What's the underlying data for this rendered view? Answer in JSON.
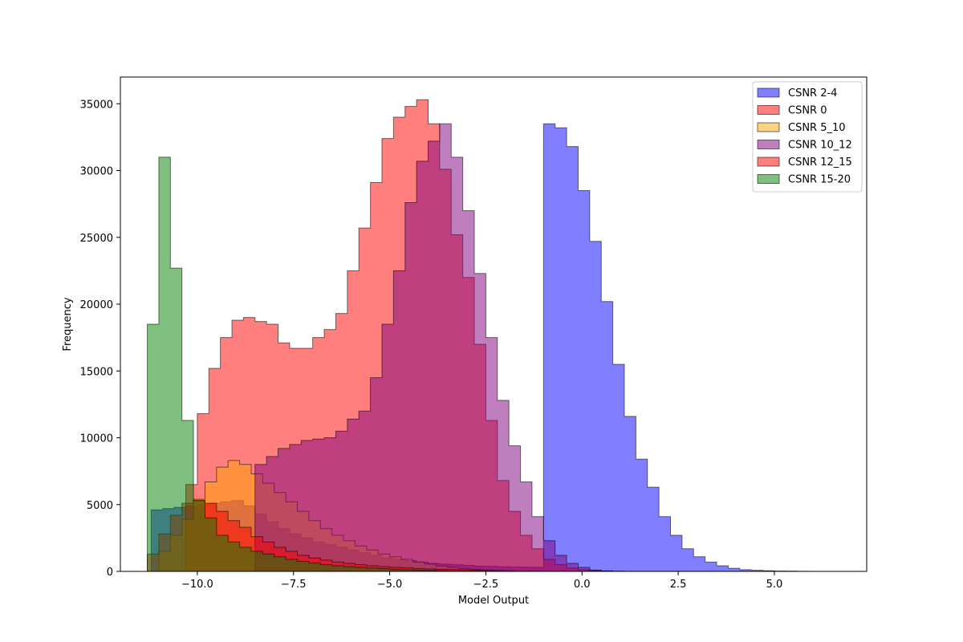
{
  "chart_data": {
    "type": "histogram",
    "title": "",
    "xlabel": "Model Output",
    "ylabel": "Frequency",
    "xlim": [
      -12.0,
      7.4
    ],
    "ylim": [
      0,
      37000
    ],
    "xticks": [
      -10.0,
      -7.5,
      -5.0,
      -2.5,
      0.0,
      2.5,
      5.0
    ],
    "xtick_labels": [
      "−10.0",
      "−7.5",
      "−5.0",
      "−2.5",
      "0.0",
      "2.5",
      "5.0"
    ],
    "yticks": [
      0,
      5000,
      10000,
      15000,
      20000,
      25000,
      30000,
      35000
    ],
    "ytick_labels": [
      "0",
      "5000",
      "10000",
      "15000",
      "20000",
      "25000",
      "30000",
      "35000"
    ],
    "grid": false,
    "legend_position": "top-right",
    "series": [
      {
        "name": "CSNR 2-4",
        "color": "#0000ff",
        "alpha": 0.5,
        "start": -11.2,
        "width": 0.3,
        "counts": [
          4600,
          4700,
          4800,
          4900,
          5000,
          5100,
          5200,
          5300,
          4900,
          4300,
          3700,
          3200,
          2800,
          2500,
          2200,
          2000,
          1800,
          1600,
          1400,
          1200,
          1000,
          900,
          800,
          700,
          600,
          550,
          500,
          450,
          400,
          380,
          350,
          330,
          320,
          310,
          33500,
          33200,
          31800,
          28500,
          24700,
          20200,
          15500,
          11600,
          8400,
          6300,
          4100,
          2700,
          1700,
          1100,
          700,
          420,
          230,
          130,
          80,
          50,
          30,
          20,
          10,
          0,
          0,
          0,
          0
        ]
      },
      {
        "name": "CSNR 0",
        "color": "#ff0000",
        "alpha": 0.5,
        "start": -10.3,
        "width": 0.3,
        "counts": [
          6500,
          11800,
          15200,
          17500,
          18800,
          19000,
          18700,
          18500,
          17100,
          16700,
          16700,
          17500,
          18100,
          19300,
          22500,
          25700,
          29100,
          32400,
          34000,
          34800,
          35300,
          33500,
          30100,
          25200,
          22000,
          17000,
          11300,
          6800,
          4500,
          2700,
          1700,
          900,
          500,
          250,
          120,
          60,
          30,
          10,
          0,
          0,
          0,
          0
        ]
      },
      {
        "name": "CSNR 5_10",
        "color": "#ffa500",
        "alpha": 0.5,
        "start": -11.0,
        "width": 0.3,
        "counts": [
          1500,
          2700,
          3900,
          5400,
          6700,
          7800,
          8300,
          8000,
          7300,
          6600,
          5900,
          5200,
          4500,
          3800,
          3200,
          2700,
          2300,
          1900,
          1600,
          1300,
          1100,
          900,
          700,
          550,
          400,
          300,
          200,
          150,
          100,
          60,
          40,
          20,
          10,
          0,
          0,
          0
        ]
      },
      {
        "name": "CSNR 10_12",
        "color": "#800080",
        "alpha": 0.5,
        "start": -8.5,
        "width": 0.3,
        "counts": [
          8000,
          8600,
          9200,
          9500,
          9800,
          9900,
          10000,
          10500,
          11400,
          12000,
          14500,
          18500,
          22500,
          27600,
          30700,
          32200,
          33500,
          31000,
          27000,
          22300,
          17500,
          12800,
          9400,
          6700,
          4100,
          2300,
          1200,
          600,
          300,
          100,
          40,
          10,
          0,
          0,
          0
        ]
      },
      {
        "name": "CSNR 12_15",
        "color": "#ff0000",
        "alpha": 0.5,
        "start": -11.3,
        "width": 0.3,
        "counts": [
          1300,
          2800,
          4200,
          5100,
          5300,
          5100,
          4500,
          3800,
          3300,
          2600,
          2200,
          1800,
          1500,
          1200,
          1000,
          850,
          700,
          600,
          500,
          420,
          350,
          300,
          260,
          220,
          190,
          160,
          140,
          120,
          100,
          80,
          60,
          40,
          30,
          20,
          10,
          0,
          0,
          0
        ]
      },
      {
        "name": "CSNR 15-20",
        "color": "#008000",
        "alpha": 0.5,
        "start": -11.3,
        "width": 0.3,
        "counts": [
          18500,
          31000,
          22700,
          11300,
          5300,
          4000,
          2700,
          2200,
          1800,
          1500,
          1300,
          1100,
          900,
          750,
          620,
          500,
          420,
          350,
          300,
          250,
          200,
          160,
          130,
          100,
          80,
          60,
          40,
          30,
          20,
          10,
          0,
          0,
          0
        ]
      }
    ]
  }
}
